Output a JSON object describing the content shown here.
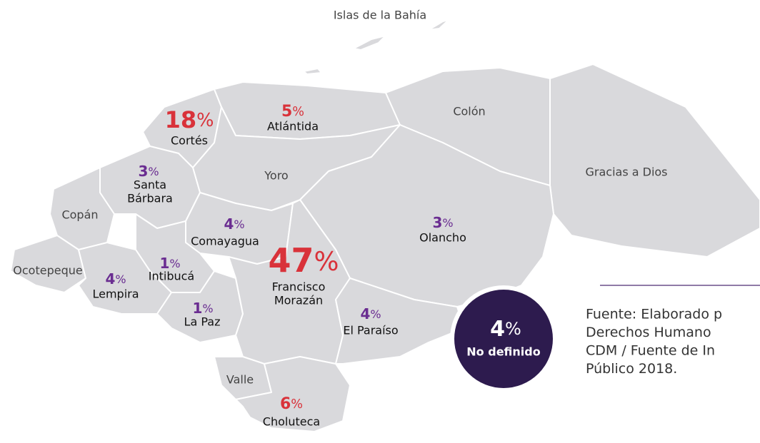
{
  "map": {
    "regions": [
      {
        "name": [
          "Islas de la Bahía"
        ]
      },
      {
        "name": [
          "Cortés"
        ],
        "value": 18,
        "unit": "%",
        "color": "#d9323a"
      },
      {
        "name": [
          "Atlántida"
        ],
        "value": 5,
        "unit": "%",
        "color": "#d9323a"
      },
      {
        "name": [
          "Colón"
        ]
      },
      {
        "name": [
          "Gracias a Dios"
        ]
      },
      {
        "name": [
          "Yoro"
        ]
      },
      {
        "name": [
          "Santa",
          "Bárbara"
        ],
        "value": 3,
        "unit": "%",
        "color": "#6a2d91"
      },
      {
        "name": [
          "Copán"
        ]
      },
      {
        "name": [
          "Comayagua"
        ],
        "value": 4,
        "unit": "%",
        "color": "#6a2d91"
      },
      {
        "name": [
          "Olancho"
        ],
        "value": 3,
        "unit": "%",
        "color": "#6a2d91"
      },
      {
        "name": [
          "Ocotepeque"
        ]
      },
      {
        "name": [
          "Intibucá"
        ],
        "value": 1,
        "unit": "%",
        "color": "#6a2d91"
      },
      {
        "name": [
          "Lempira"
        ],
        "value": 4,
        "unit": "%",
        "color": "#6a2d91"
      },
      {
        "name": [
          "Francisco",
          "Morazán"
        ],
        "value": 47,
        "unit": "%",
        "color": "#d9323a"
      },
      {
        "name": [
          "La Paz"
        ],
        "value": 1,
        "unit": "%",
        "color": "#6a2d91"
      },
      {
        "name": [
          "El Paraíso"
        ],
        "value": 4,
        "unit": "%",
        "color": "#6a2d91"
      },
      {
        "name": [
          "Valle"
        ]
      },
      {
        "name": [
          "Choluteca"
        ],
        "value": 6,
        "unit": "%",
        "color": "#d9323a"
      }
    ],
    "undefined": {
      "name": [
        "No definido"
      ],
      "value": 4,
      "unit": "%",
      "color": "#ffffff"
    },
    "source": [
      "Fuente: Elaborado p",
      "Derechos  Humano",
      "CDM / Fuente de In",
      "Público 2018."
    ]
  }
}
